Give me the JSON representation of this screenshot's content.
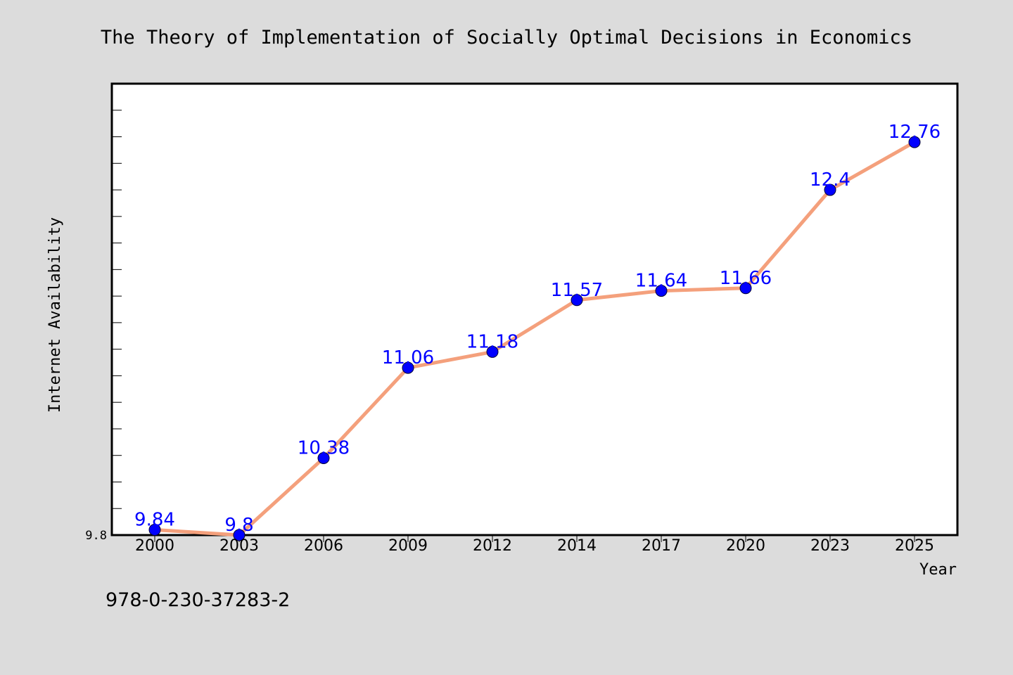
{
  "colors": {
    "background": "#dcdcdc",
    "plot_background": "#ffffff",
    "line": "#f4a07c",
    "marker": "#0000ff",
    "data_label": "#0000ff",
    "frame": "#000000"
  },
  "footer_text": "978-0-230-37283-2",
  "chart_data": {
    "type": "line",
    "title": "The Theory of Implementation of Socially Optimal Decisions in Economics",
    "xlabel": "Year",
    "ylabel": "Internet Availability",
    "categories": [
      "2000",
      "2003",
      "2006",
      "2009",
      "2012",
      "2014",
      "2017",
      "2020",
      "2023",
      "2025"
    ],
    "series": [
      {
        "values": [
          9.84,
          9.8,
          10.38,
          11.06,
          11.18,
          11.57,
          11.64,
          11.66,
          12.4,
          12.76
        ]
      }
    ],
    "data_labels": [
      "9.84",
      "9.8",
      "10.38",
      "11.06",
      "11.18",
      "11.57",
      "11.64",
      "11.66",
      "12.4",
      "12.76"
    ],
    "y_tick_labels": [
      "9.8"
    ],
    "ylim": [
      9.8,
      13.2
    ],
    "grid": false,
    "legend": "none"
  }
}
